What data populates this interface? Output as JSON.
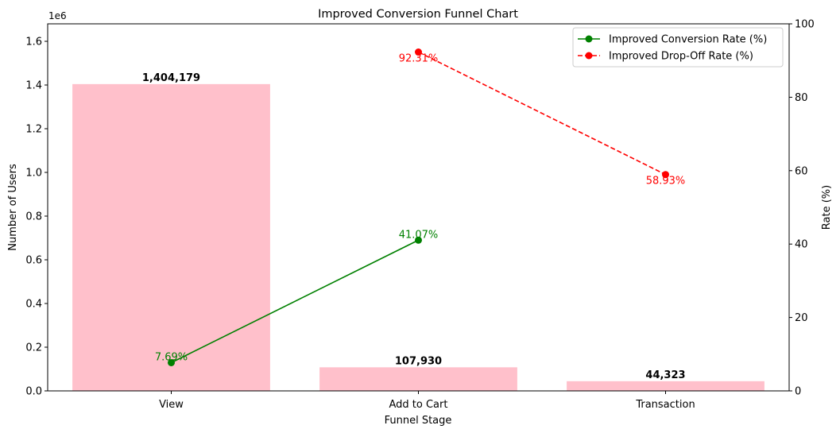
{
  "chart_data": {
    "type": "bar",
    "title": "Improved Conversion Funnel Chart",
    "xlabel": "Funnel Stage",
    "ylabel": "Number of Users",
    "y2label": "Rate (%)",
    "y_offset_label": "1e6",
    "categories": [
      "View",
      "Add to Cart",
      "Transaction"
    ],
    "ylim": [
      0,
      1.68
    ],
    "y_ticks": [
      "0.0",
      "0.2",
      "0.4",
      "0.6",
      "0.8",
      "1.0",
      "1.2",
      "1.4",
      "1.6"
    ],
    "y2lim": [
      0,
      100
    ],
    "y2_ticks": [
      "0",
      "20",
      "40",
      "60",
      "80",
      "100"
    ],
    "grid": false,
    "legend_position": "top-right",
    "bars": {
      "values": [
        1404179,
        107930,
        44323
      ],
      "labels": [
        "1,404,179",
        "107,930",
        "44,323"
      ],
      "color": "#ffc0cb"
    },
    "series": [
      {
        "name": "Improved Conversion Rate (%)",
        "type": "line",
        "axis": "right",
        "color": "#008000",
        "style": "solid",
        "x": [
          "View",
          "Add to Cart"
        ],
        "values": [
          7.69,
          41.07
        ],
        "labels": [
          "7.69%",
          "41.07%"
        ]
      },
      {
        "name": "Improved Drop-Off Rate (%)",
        "type": "line",
        "axis": "right",
        "color": "#ff0000",
        "style": "dashed",
        "x": [
          "Add to Cart",
          "Transaction"
        ],
        "values": [
          92.31,
          58.93
        ],
        "labels": [
          "92.31%",
          "58.93%"
        ]
      }
    ]
  }
}
